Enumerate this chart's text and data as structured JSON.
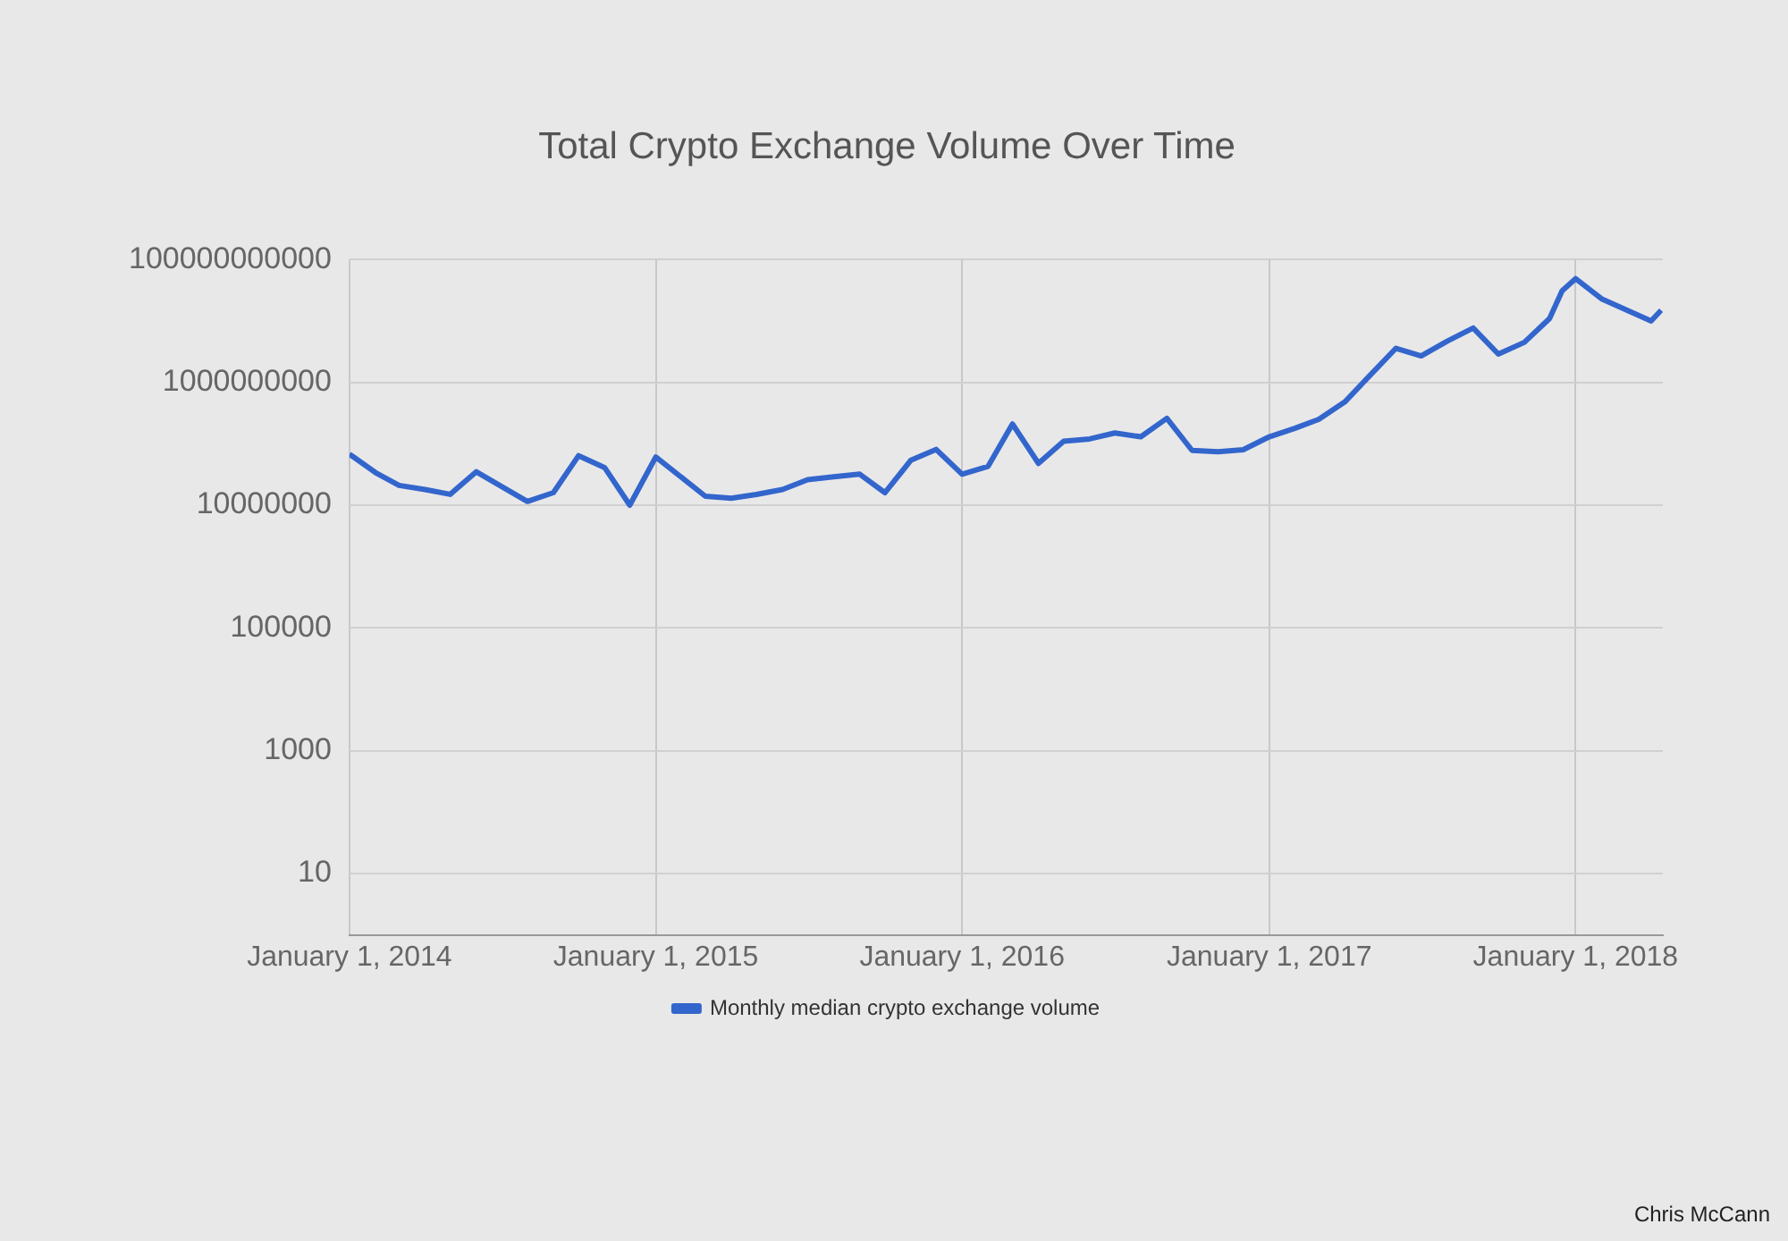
{
  "chart_data": {
    "type": "line",
    "title": "Total Crypto Exchange Volume Over Time",
    "x": [
      "2014-01-01",
      "2014-02-01",
      "2014-03-01",
      "2014-04-01",
      "2014-05-01",
      "2014-06-01",
      "2014-08-01",
      "2014-09-01",
      "2014-10-01",
      "2014-11-01",
      "2014-12-01",
      "2015-01-01",
      "2015-03-01",
      "2015-04-01",
      "2015-05-01",
      "2015-06-01",
      "2015-07-01",
      "2015-08-01",
      "2015-09-01",
      "2015-10-01",
      "2015-11-01",
      "2015-12-01",
      "2016-01-01",
      "2016-02-01",
      "2016-03-01",
      "2016-04-01",
      "2016-05-01",
      "2016-06-01",
      "2016-07-01",
      "2016-08-01",
      "2016-09-01",
      "2016-10-01",
      "2016-11-01",
      "2016-12-01",
      "2017-01-01",
      "2017-02-01",
      "2017-03-01",
      "2017-04-01",
      "2017-05-01",
      "2017-06-01",
      "2017-07-01",
      "2017-08-01",
      "2017-09-01",
      "2017-10-01",
      "2017-11-01",
      "2017-12-01",
      "2017-12-16",
      "2018-01-01",
      "2018-02-01",
      "2018-04-01",
      "2018-04-13"
    ],
    "series": [
      {
        "name": "Monthly median crypto exchange volume",
        "color": "#3366cc",
        "values": [
          68000000,
          34000000,
          21000000,
          18000000,
          15000000,
          35000000,
          11500000,
          16000000,
          64000000,
          41000000,
          10000000,
          61000000,
          14000000,
          13000000,
          15000000,
          18000000,
          26000000,
          29000000,
          32000000,
          16000000,
          54000000,
          81000000,
          32000000,
          43000000,
          210000000,
          48000000,
          110000000,
          120000000,
          150000000,
          130000000,
          260000000,
          78000000,
          74000000,
          80000000,
          130000000,
          180000000,
          250000000,
          480000000,
          1300000000,
          3600000000,
          2700000000,
          4700000000,
          7700000000,
          2900000000,
          4500000000,
          11000000000,
          31000000000,
          49000000000,
          23000000000,
          10000000000,
          15000000000
        ]
      }
    ],
    "xlim": [
      "2014-01-01",
      "2018-04-15"
    ],
    "xticks": [
      {
        "value": "2014-01-01",
        "label": "January 1, 2014"
      },
      {
        "value": "2015-01-01",
        "label": "January 1, 2015"
      },
      {
        "value": "2016-01-01",
        "label": "January 1, 2016"
      },
      {
        "value": "2017-01-01",
        "label": "January 1, 2017"
      },
      {
        "value": "2018-01-01",
        "label": "January 1, 2018"
      }
    ],
    "ylim": [
      1,
      100000000000
    ],
    "yticks": [
      10,
      1000,
      100000,
      10000000,
      1000000000,
      100000000000
    ],
    "log": true,
    "grid": true,
    "legend": "bottom",
    "marker": "none",
    "line_style": "solid",
    "annotations": [
      "Chris McCann"
    ]
  }
}
